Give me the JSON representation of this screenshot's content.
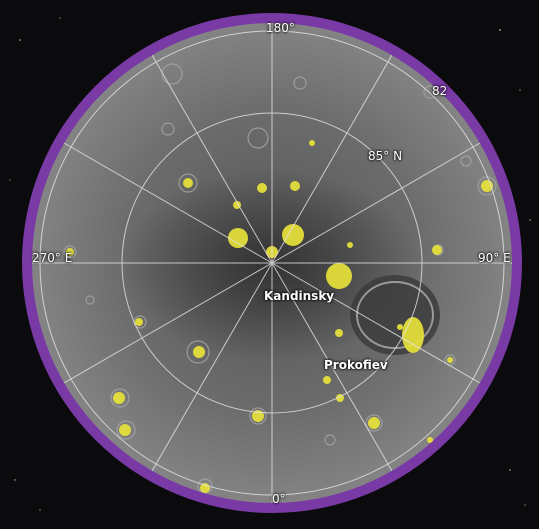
{
  "map": {
    "colors": {
      "space": "#0b0b0d",
      "frame": "#7a3aa6",
      "surface": "#6f6f6f",
      "ice": "#e8e23a",
      "grid": "#e6e6e6"
    },
    "labels": {
      "lon_180": "180°",
      "lon_0": "0°",
      "lon_90e": "90° E",
      "lon_270e": "270° E",
      "lat_85n": "85° N",
      "lat_82": "82"
    },
    "features": {
      "kandinsky": "Kandinsky",
      "prokofiev": "Prokofiev"
    }
  }
}
